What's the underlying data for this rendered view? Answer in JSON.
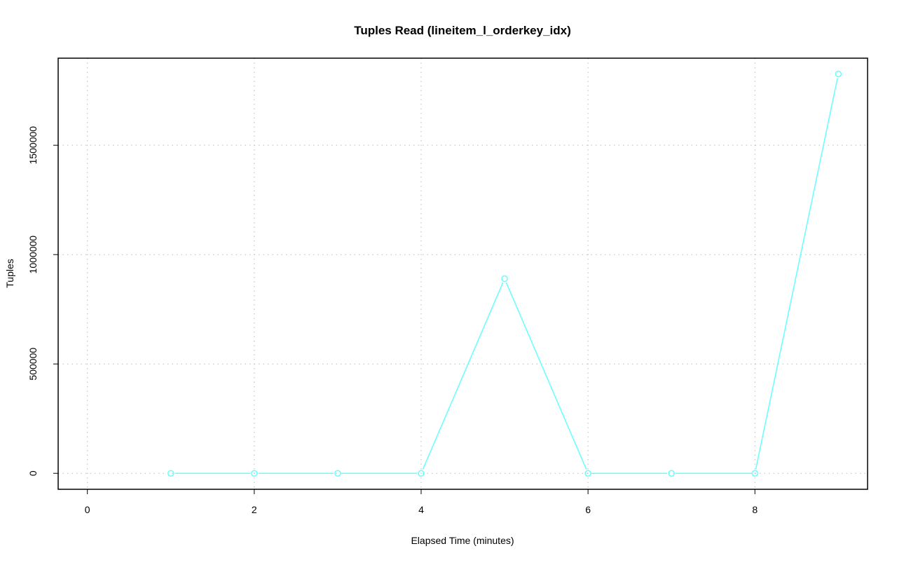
{
  "chart_data": {
    "type": "line",
    "title": "Tuples Read (lineitem_l_orderkey_idx)",
    "xlabel": "Elapsed Time (minutes)",
    "ylabel": "Tuples",
    "x": [
      1,
      2,
      3,
      4,
      5,
      6,
      7,
      8,
      9
    ],
    "values": [
      0,
      0,
      0,
      0,
      890000,
      0,
      0,
      0,
      1826000
    ],
    "xlim": [
      -0.35,
      9.35
    ],
    "ylim": [
      -73000,
      1898000
    ],
    "x_ticks": [
      "0",
      "2",
      "4",
      "6",
      "8"
    ],
    "y_ticks": [
      "0",
      "500000",
      "1000000",
      "1500000"
    ],
    "grid": true,
    "series_color": "#66ffff",
    "marker": "open-circle"
  }
}
